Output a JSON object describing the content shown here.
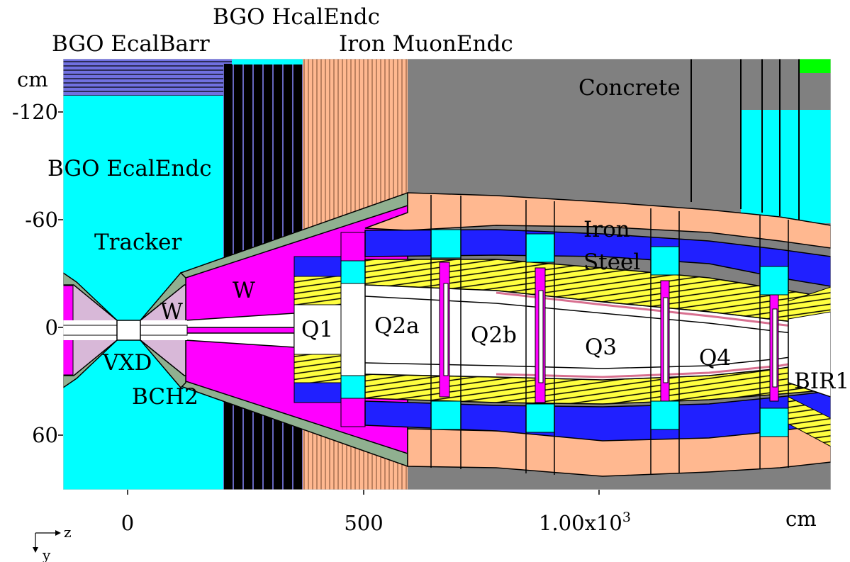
{
  "colors": {
    "cyan": "#00ffff",
    "black": "#000000",
    "iron": "#ffb890",
    "concrete": "#808080",
    "magenta": "#ff00ff",
    "blue": "#2020ff",
    "yellow": "#ffff40",
    "sage": "#90b090",
    "lavender": "#d8b8d8",
    "green": "#00ff00",
    "pink": "#d87090",
    "ecalbarr": "#7070e0"
  },
  "labels": {
    "bgo_ecalbarr": "BGO EcalBarr",
    "bgo_hcalendc": "BGO HcalEndc",
    "iron_muonendc": "Iron MuonEndc",
    "concrete": "Concrete",
    "bgo_ecalendc": "BGO EcalEndc",
    "tracker": "Tracker",
    "w_cone": "W",
    "w_small": "W",
    "vxd": "VXD",
    "bch2": "BCH2",
    "q1": "Q1",
    "q2a": "Q2a",
    "q2b": "Q2b",
    "q3": "Q3",
    "q4": "Q4",
    "bir1": "BIR1",
    "iron": "Iron",
    "steel": "Steel"
  },
  "axes": {
    "y_unit": "cm",
    "x_unit": "cm",
    "y_ticks": [
      {
        "label": "-120",
        "value": -120
      },
      {
        "label": "-60",
        "value": -60
      },
      {
        "label": "0",
        "value": 0
      },
      {
        "label": "60",
        "value": 60
      }
    ],
    "x_ticks": [
      {
        "label": "0",
        "value": 0
      },
      {
        "label": "500",
        "value": 500
      },
      {
        "label": "1.00x10",
        "sup": "3",
        "value": 1000
      }
    ],
    "corner": {
      "h": "z",
      "v": "y"
    }
  }
}
